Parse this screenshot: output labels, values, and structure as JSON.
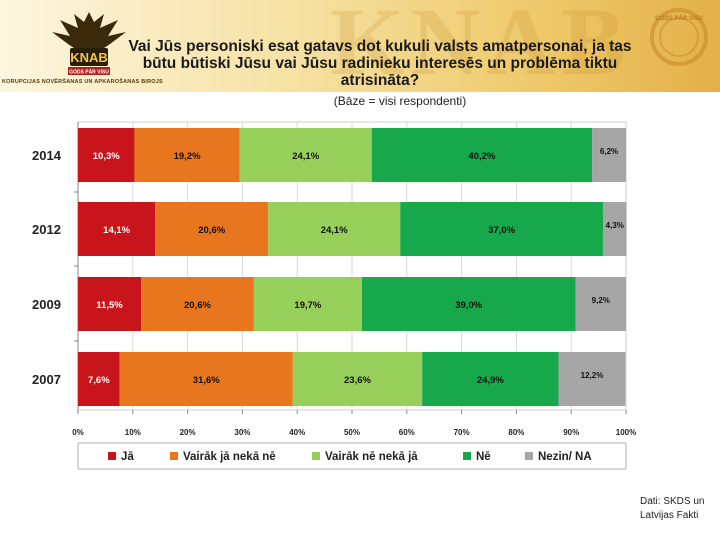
{
  "header": {
    "logo_text": "KNAB",
    "logo_ribbon": "GODS PĀR VISU",
    "logo_caption": "KORUPCIJAS NOVĒRŠANAS UN APKAROŠANAS BIROJS",
    "watermark": "KNAB",
    "wreath_text": "GODS PĀR VISU"
  },
  "chart_data": {
    "type": "bar",
    "orientation": "horizontal-stacked-100",
    "title": "Vai Jūs personiski esat gatavs dot kukuli valsts amatpersonai, ja tas būtu būtiski Jūsu vai Jūsu radinieku interesēs un problēma tiktu atrisināta?",
    "subtitle": "(Bāze = visi respondenti)",
    "categories": [
      "2014",
      "2012",
      "2009",
      "2007"
    ],
    "series": [
      {
        "name": "Jā",
        "color": "#c8151c",
        "values": [
          10.3,
          14.1,
          11.5,
          7.6
        ],
        "labels": [
          "10,3%",
          "14,1%",
          "11,5%",
          "7,6%"
        ]
      },
      {
        "name": "Vairāk jā nekā nē",
        "color": "#e8761e",
        "values": [
          19.2,
          20.6,
          20.6,
          31.6
        ],
        "labels": [
          "19,2%",
          "20,6%",
          "20,6%",
          "31,6%"
        ]
      },
      {
        "name": "Vairāk nē nekā jā",
        "color": "#96d05a",
        "values": [
          24.1,
          24.1,
          19.7,
          23.6
        ],
        "labels": [
          "24,1%",
          "24,1%",
          "19,7%",
          "23,6%"
        ]
      },
      {
        "name": "Nē",
        "color": "#16a84a",
        "values": [
          40.2,
          37.0,
          39.0,
          24.9
        ],
        "labels": [
          "40,2%",
          "37,0%",
          "39,0%",
          "24,9%"
        ]
      },
      {
        "name": "Nezin/ NA",
        "color": "#a6a6a6",
        "values": [
          6.2,
          4.3,
          9.2,
          12.2
        ],
        "labels": [
          "6,2%",
          "4,3%",
          "9,2%",
          "12,2%"
        ]
      }
    ],
    "xticks": [
      "0%",
      "10%",
      "20%",
      "30%",
      "40%",
      "50%",
      "60%",
      "70%",
      "80%",
      "90%",
      "100%"
    ],
    "xlim": [
      0,
      100
    ],
    "grid": "vertical",
    "legend": "bottom"
  },
  "footer": {
    "source": "Dati: SKDS un Latvijas Fakti"
  }
}
